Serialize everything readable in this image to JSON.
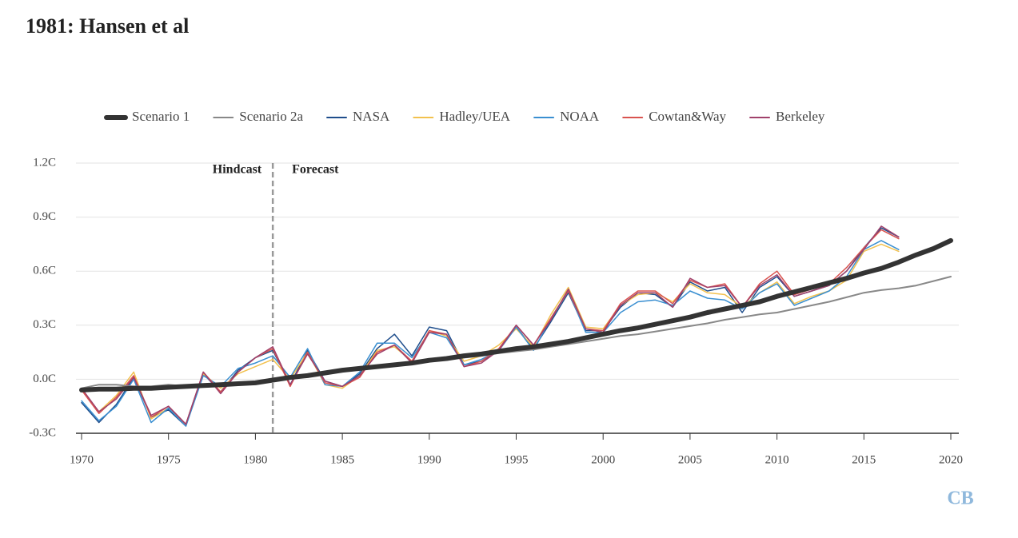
{
  "chart_data": {
    "type": "line",
    "title": "1981: Hansen et al",
    "x": [
      1970,
      1971,
      1972,
      1973,
      1974,
      1975,
      1976,
      1977,
      1978,
      1979,
      1980,
      1981,
      1982,
      1983,
      1984,
      1985,
      1986,
      1987,
      1988,
      1989,
      1990,
      1991,
      1992,
      1993,
      1994,
      1995,
      1996,
      1997,
      1998,
      1999,
      2000,
      2001,
      2002,
      2003,
      2004,
      2005,
      2006,
      2007,
      2008,
      2009,
      2010,
      2011,
      2012,
      2013,
      2014,
      2015,
      2016,
      2017,
      2018,
      2019,
      2020
    ],
    "series": [
      {
        "name": "Scenario 1",
        "color": "#333333",
        "line_width": 6,
        "values": [
          -0.06,
          -0.055,
          -0.055,
          -0.05,
          -0.05,
          -0.045,
          -0.04,
          -0.035,
          -0.03,
          -0.025,
          -0.02,
          -0.005,
          0.01,
          0.02,
          0.035,
          0.05,
          0.06,
          0.07,
          0.08,
          0.09,
          0.105,
          0.115,
          0.13,
          0.14,
          0.155,
          0.17,
          0.18,
          0.195,
          0.21,
          0.23,
          0.25,
          0.27,
          0.285,
          0.305,
          0.325,
          0.345,
          0.37,
          0.39,
          0.41,
          0.43,
          0.46,
          0.485,
          0.51,
          0.535,
          0.56,
          0.59,
          0.615,
          0.65,
          0.69,
          0.725,
          0.77
        ]
      },
      {
        "name": "Scenario 2a",
        "color": "#888888",
        "line_width": 2,
        "values": [
          -0.05,
          -0.03,
          -0.03,
          -0.04,
          -0.04,
          -0.03,
          -0.04,
          -0.03,
          -0.03,
          -0.02,
          -0.02,
          0.0,
          0.01,
          0.02,
          0.035,
          0.05,
          0.06,
          0.07,
          0.08,
          0.09,
          0.1,
          0.11,
          0.12,
          0.13,
          0.145,
          0.155,
          0.165,
          0.18,
          0.195,
          0.21,
          0.225,
          0.24,
          0.25,
          0.265,
          0.28,
          0.295,
          0.31,
          0.33,
          0.345,
          0.36,
          0.37,
          0.39,
          0.41,
          0.43,
          0.455,
          0.48,
          0.495,
          0.505,
          0.52,
          0.545,
          0.57
        ]
      },
      {
        "name": "NASA",
        "color": "#1f4e8c",
        "line_width": 1.5,
        "values": [
          -0.13,
          -0.24,
          -0.14,
          0.01,
          -0.21,
          -0.17,
          -0.26,
          0.03,
          -0.07,
          0.05,
          0.12,
          0.16,
          -0.03,
          0.16,
          -0.01,
          -0.04,
          0.03,
          0.17,
          0.25,
          0.13,
          0.29,
          0.27,
          0.08,
          0.1,
          0.16,
          0.29,
          0.17,
          0.32,
          0.48,
          0.27,
          0.27,
          0.4,
          0.48,
          0.47,
          0.4,
          0.54,
          0.49,
          0.51,
          0.37,
          0.51,
          0.57,
          0.46,
          0.49,
          0.52,
          0.6,
          0.73,
          0.84,
          0.79,
          null,
          null,
          null
        ]
      },
      {
        "name": "Hadley/UEA",
        "color": "#f2c14e",
        "line_width": 1.5,
        "values": [
          -0.06,
          -0.18,
          -0.09,
          0.04,
          -0.22,
          -0.16,
          -0.25,
          0.03,
          -0.05,
          0.03,
          0.07,
          0.11,
          0.0,
          0.15,
          -0.03,
          -0.05,
          0.02,
          0.16,
          0.18,
          0.1,
          0.27,
          0.24,
          0.1,
          0.13,
          0.19,
          0.28,
          0.18,
          0.36,
          0.51,
          0.29,
          0.28,
          0.41,
          0.47,
          0.48,
          0.43,
          0.53,
          0.48,
          0.47,
          0.4,
          0.48,
          0.54,
          0.42,
          0.46,
          0.49,
          0.55,
          0.71,
          0.75,
          0.71,
          null,
          null,
          null
        ]
      },
      {
        "name": "NOAA",
        "color": "#3a8fd1",
        "line_width": 1.5,
        "values": [
          -0.12,
          -0.23,
          -0.15,
          0.0,
          -0.24,
          -0.16,
          -0.26,
          0.02,
          -0.04,
          0.06,
          0.09,
          0.13,
          0.01,
          0.17,
          -0.03,
          -0.04,
          0.04,
          0.2,
          0.2,
          0.12,
          0.26,
          0.23,
          0.08,
          0.11,
          0.16,
          0.29,
          0.16,
          0.34,
          0.49,
          0.26,
          0.26,
          0.37,
          0.43,
          0.44,
          0.41,
          0.49,
          0.45,
          0.44,
          0.39,
          0.48,
          0.53,
          0.41,
          0.45,
          0.49,
          0.57,
          0.72,
          0.77,
          0.72,
          null,
          null,
          null
        ]
      },
      {
        "name": "Cowtan&Way",
        "color": "#d9534f",
        "line_width": 1.5,
        "values": [
          -0.06,
          -0.19,
          -0.1,
          0.02,
          -0.21,
          -0.15,
          -0.25,
          0.04,
          -0.07,
          0.04,
          0.12,
          0.17,
          -0.04,
          0.15,
          -0.02,
          -0.04,
          0.01,
          0.15,
          0.19,
          0.1,
          0.27,
          0.25,
          0.07,
          0.1,
          0.17,
          0.3,
          0.19,
          0.34,
          0.49,
          0.28,
          0.27,
          0.42,
          0.49,
          0.49,
          0.42,
          0.55,
          0.51,
          0.53,
          0.4,
          0.53,
          0.6,
          0.47,
          0.5,
          0.53,
          0.62,
          0.73,
          0.83,
          0.78,
          null,
          null,
          null
        ]
      },
      {
        "name": "Berkeley",
        "color": "#a0416b",
        "line_width": 1.5,
        "values": [
          -0.05,
          -0.18,
          -0.11,
          0.01,
          -0.2,
          -0.15,
          -0.25,
          0.04,
          -0.08,
          0.04,
          0.12,
          0.18,
          -0.03,
          0.14,
          -0.01,
          -0.04,
          0.02,
          0.14,
          0.19,
          0.09,
          0.26,
          0.25,
          0.07,
          0.09,
          0.16,
          0.3,
          0.19,
          0.33,
          0.5,
          0.28,
          0.26,
          0.41,
          0.48,
          0.48,
          0.4,
          0.56,
          0.51,
          0.52,
          0.4,
          0.52,
          0.58,
          0.46,
          0.49,
          0.52,
          0.6,
          0.72,
          0.85,
          0.79,
          null,
          null,
          null
        ]
      }
    ],
    "xlim": [
      1970,
      2020
    ],
    "xticks": [
      1970,
      1975,
      1980,
      1985,
      1990,
      1995,
      2000,
      2005,
      2010,
      2015,
      2020
    ],
    "ylim": [
      -0.3,
      1.2
    ],
    "yticks": [
      {
        "value": -0.3,
        "label": "-0.3C"
      },
      {
        "value": 0.0,
        "label": "0.0C"
      },
      {
        "value": 0.3,
        "label": "0.3C"
      },
      {
        "value": 0.6,
        "label": "0.6C"
      },
      {
        "value": 0.9,
        "label": "0.9C"
      },
      {
        "value": 1.2,
        "label": "1.2C"
      }
    ],
    "grid": true,
    "legend": "top",
    "divider_x": 1981,
    "divider_left_label": "Hindcast",
    "divider_right_label": "Forecast",
    "logo": "CB"
  }
}
